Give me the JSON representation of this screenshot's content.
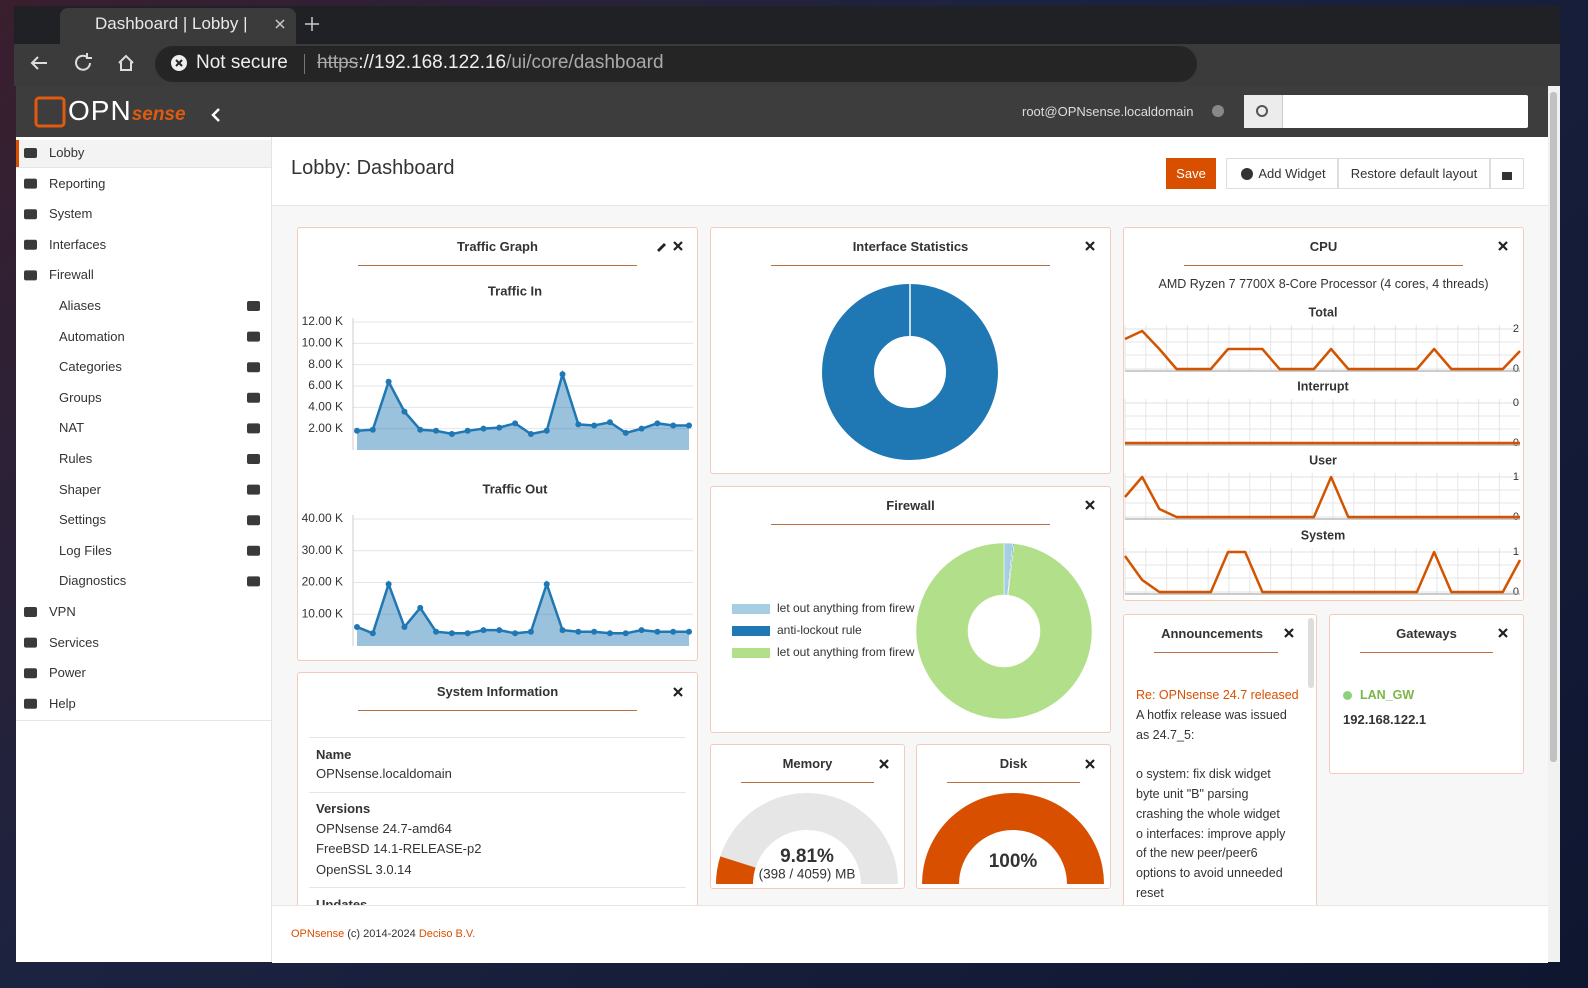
{
  "browser": {
    "tab_title": "Dashboard | Lobby | ",
    "security": "Not secure",
    "url_scheme": "https",
    "url_host": "://192.168.122.16",
    "url_path": "/ui/core/dashboard"
  },
  "header": {
    "logo_opn": "OPN",
    "logo_sense": "sense",
    "user": "root@OPNsense.localdomain"
  },
  "sidebar": {
    "items": [
      "Lobby",
      "Reporting",
      "System",
      "Interfaces",
      "Firewall"
    ],
    "firewall_items": [
      "Aliases",
      "Automation",
      "Categories",
      "Groups",
      "NAT",
      "Rules",
      "Shaper",
      "Settings",
      "Log Files",
      "Diagnostics"
    ],
    "items_after": [
      "VPN",
      "Services",
      "Power",
      "Help"
    ]
  },
  "page": {
    "title": "Lobby: Dashboard",
    "save": "Save",
    "add_widget": "Add Widget",
    "restore": "Restore default layout"
  },
  "widgets": {
    "traffic": {
      "title": "Traffic Graph",
      "in": {
        "title": "Traffic In",
        "color": "#1f77b4",
        "ylim": [
          0,
          12000
        ],
        "yticks": [
          {
            "value": 2000,
            "label": "2.00 K"
          },
          {
            "value": 4000,
            "label": "4.00 K"
          },
          {
            "value": 6000,
            "label": "6.00 K"
          },
          {
            "value": 8000,
            "label": "8.00 K"
          },
          {
            "value": 10000,
            "label": "10.00 K"
          },
          {
            "value": 12000,
            "label": "12.00 K"
          }
        ],
        "values": [
          1800,
          1900,
          6400,
          3600,
          1900,
          1800,
          1500,
          1800,
          2000,
          2100,
          2500,
          1500,
          1800,
          7100,
          2400,
          2300,
          2600,
          1600,
          2000,
          2500,
          2300,
          2300
        ]
      },
      "out": {
        "title": "Traffic Out",
        "color": "#1f77b4",
        "ylim": [
          0,
          40000
        ],
        "yticks": [
          {
            "value": 10000,
            "label": "10.00 K"
          },
          {
            "value": 20000,
            "label": "20.00 K"
          },
          {
            "value": 30000,
            "label": "30.00 K"
          },
          {
            "value": 40000,
            "label": "40.00 K"
          }
        ],
        "values": [
          6000,
          4000,
          19500,
          6000,
          12000,
          4500,
          4000,
          4000,
          5000,
          5000,
          4000,
          4500,
          19500,
          5000,
          4500,
          4500,
          4000,
          4000,
          5000,
          4500,
          4500,
          4500
        ]
      }
    },
    "interface_statistics": {
      "title": "Interface Statistics",
      "values": [
        100
      ],
      "color": "#1f77b4"
    },
    "firewall": {
      "title": "Firewall",
      "series": [
        {
          "name": "let out anything from firew",
          "color": "#a6cee3",
          "value": 1.6
        },
        {
          "name": "anti-lockout rule",
          "color": "#1f78b4",
          "value": 0.2
        },
        {
          "name": "let out anything from firew",
          "color": "#b2df8a",
          "value": 98.2
        }
      ]
    },
    "cpu": {
      "title": "CPU",
      "model": "AMD Ryzen 7 7700X 8-Core Processor (4 cores, 4 threads)",
      "color": "#d35400",
      "charts": [
        {
          "title": "Total",
          "ylim": [
            0,
            2
          ],
          "yticks": [
            0,
            2
          ],
          "values": [
            1.5,
            1.9,
            1.0,
            0,
            0,
            0,
            1.0,
            1.0,
            1.0,
            0,
            0,
            0,
            1.0,
            0,
            0,
            0,
            0,
            0,
            1.0,
            0,
            0,
            0,
            0,
            0.9
          ]
        },
        {
          "title": "Interrupt",
          "ylim": [
            0,
            0.4
          ],
          "yticks": [
            0,
            {
              "value": 0.4,
              "label": "0"
            }
          ],
          "values": [
            0,
            0,
            0,
            0,
            0,
            0,
            0,
            0,
            0,
            0,
            0,
            0,
            0,
            0,
            0,
            0,
            0,
            0,
            0,
            0,
            0,
            0,
            0,
            0
          ]
        },
        {
          "title": "User",
          "ylim": [
            0,
            1
          ],
          "yticks": [
            0,
            1
          ],
          "values": [
            0.5,
            1,
            0.2,
            0,
            0,
            0,
            0,
            0,
            0,
            0,
            0,
            0,
            1,
            0,
            0,
            0,
            0,
            0,
            0,
            0,
            0,
            0,
            0,
            0
          ]
        },
        {
          "title": "System",
          "ylim": [
            0,
            1
          ],
          "yticks": [
            0,
            1
          ],
          "values": [
            0.9,
            0.3,
            0,
            0,
            0,
            0,
            1,
            1,
            0,
            0,
            0,
            0,
            0,
            0,
            0,
            0,
            0,
            0,
            1,
            0,
            0,
            0,
            0,
            0.8
          ]
        }
      ]
    },
    "memory": {
      "title": "Memory",
      "value": 9.81,
      "value_label": "9.81%",
      "detail": "(398 / 4059) MB",
      "color": "#d94f00"
    },
    "disk": {
      "title": "Disk",
      "value": 100,
      "value_label": "100%",
      "color": "#d94f00"
    },
    "system_information": {
      "title": "System Information",
      "name_label": "Name",
      "name": "OPNsense.localdomain",
      "versions_label": "Versions",
      "versions": [
        "OPNsense 24.7-amd64",
        "FreeBSD 14.1-RELEASE-p2",
        "OpenSSL 3.0.14"
      ],
      "updates_label": "Updates"
    },
    "announcements": {
      "title": "Announcements",
      "link": "Re: OPNsense 24.7 released",
      "lines": [
        "A hotfix release was issued",
        "as 24.7_5:",
        "o system: fix disk widget",
        "byte unit \"B\" parsing",
        "crashing the whole widget",
        "o interfaces: improve apply",
        "of the new peer/peer6",
        "options to avoid unneeded",
        "reset"
      ]
    },
    "gateways": {
      "title": "Gateways",
      "name": "LAN_GW",
      "address": "192.168.122.1"
    }
  },
  "footer": {
    "brand": "OPNsense",
    "copyright": "(c) 2014-2024",
    "company": "Deciso B.V."
  }
}
